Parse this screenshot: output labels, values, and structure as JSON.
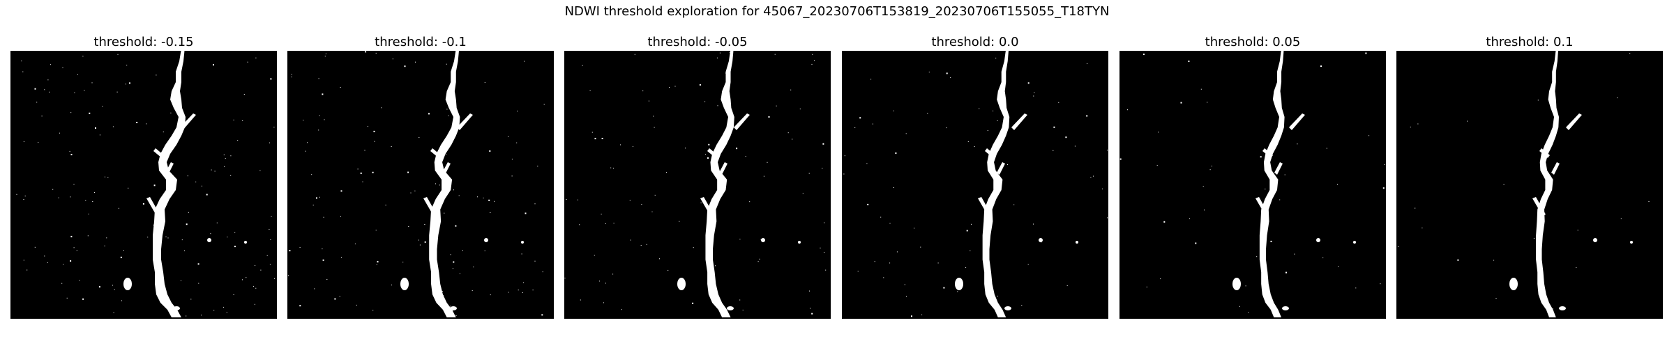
{
  "figure": {
    "suptitle": "NDWI threshold exploration for 45067_20230706T153819_20230706T155055_T18TYN"
  },
  "panels": [
    {
      "title": "threshold: -0.15",
      "threshold": -0.15
    },
    {
      "title": "threshold: -0.1",
      "threshold": -0.1
    },
    {
      "title": "threshold: -0.05",
      "threshold": -0.05
    },
    {
      "title": "threshold: 0.0",
      "threshold": 0.0
    },
    {
      "title": "threshold: 0.05",
      "threshold": 0.05
    },
    {
      "title": "threshold: 0.1",
      "threshold": 0.1
    }
  ],
  "colors": {
    "background": "#000000",
    "water": "#ffffff"
  }
}
